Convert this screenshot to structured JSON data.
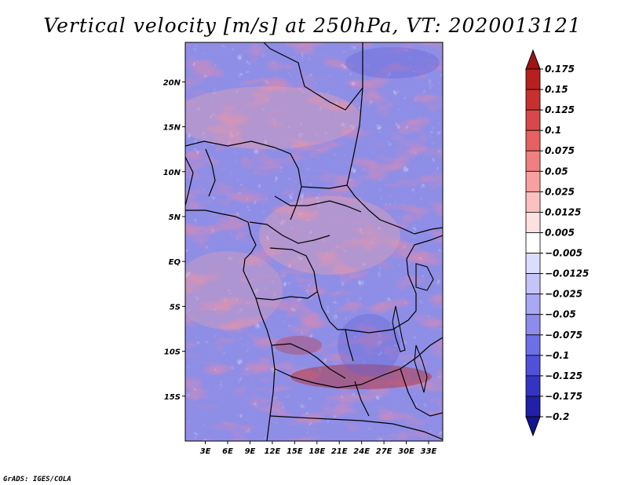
{
  "chart_data": {
    "type": "heatmap",
    "title": "Vertical velocity [m/s] at 250hPa, VT: 2020013121",
    "xlabel": "",
    "ylabel": "",
    "x_ticks": [
      {
        "value": 3,
        "label": "3E"
      },
      {
        "value": 6,
        "label": "6E"
      },
      {
        "value": 9,
        "label": "9E"
      },
      {
        "value": 12,
        "label": "12E"
      },
      {
        "value": 15,
        "label": "15E"
      },
      {
        "value": 18,
        "label": "18E"
      },
      {
        "value": 21,
        "label": "21E"
      },
      {
        "value": 24,
        "label": "24E"
      },
      {
        "value": 27,
        "label": "27E"
      },
      {
        "value": 30,
        "label": "30E"
      },
      {
        "value": 33,
        "label": "33E"
      }
    ],
    "y_ticks": [
      {
        "value": 20,
        "label": "20N"
      },
      {
        "value": 15,
        "label": "15N"
      },
      {
        "value": 10,
        "label": "10N"
      },
      {
        "value": 5,
        "label": "5N"
      },
      {
        "value": 0,
        "label": "EQ"
      },
      {
        "value": -5,
        "label": "5S"
      },
      {
        "value": -10,
        "label": "10S"
      },
      {
        "value": -15,
        "label": "15S"
      }
    ],
    "xlim": [
      0.3,
      34.9
    ],
    "ylim": [
      -20,
      24.4
    ],
    "colorbar": {
      "levels": [
        "0.175",
        "0.15",
        "0.125",
        "0.1",
        "0.075",
        "0.05",
        "0.025",
        "0.0125",
        "0.005",
        "−0.005",
        "−0.0125",
        "−0.025",
        "−0.05",
        "−0.075",
        "−0.1",
        "−0.125",
        "−0.175",
        "−0.2"
      ],
      "colors": [
        "#a01414",
        "#b82020",
        "#c83030",
        "#d84848",
        "#e86060",
        "#f08080",
        "#f8a0a0",
        "#fcc0c0",
        "#fde0e0",
        "#ffffff",
        "#dcdcfc",
        "#c4c4fa",
        "#a8a8f4",
        "#8c8cee",
        "#6e6ee6",
        "#5050d8",
        "#3434c4",
        "#2020a8",
        "#141490"
      ]
    }
  },
  "footer": {
    "credit": "GrADS: IGES/COLA"
  }
}
